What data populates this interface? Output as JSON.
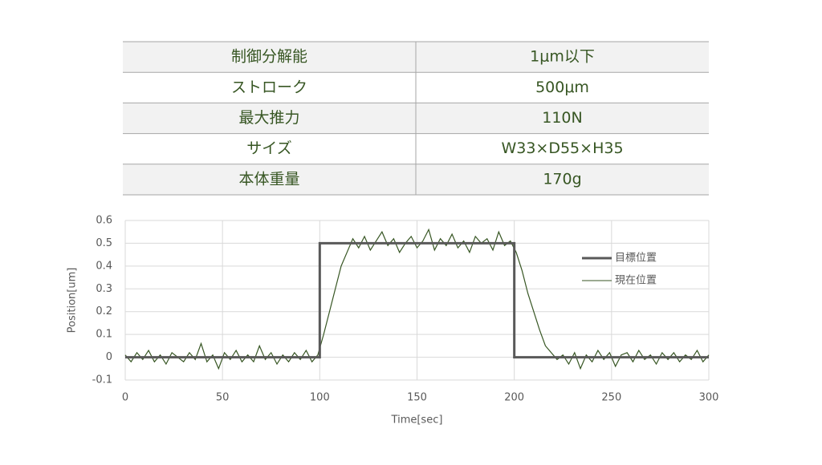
{
  "table": {
    "rows": [
      [
        "制御分解能",
        "1μm以下"
      ],
      [
        "ストローク",
        "500μm"
      ],
      [
        "最大推力",
        "110N"
      ],
      [
        "サイズ",
        "W33×D55×H35"
      ],
      [
        "本体重量",
        "170g"
      ]
    ]
  },
  "chart_data": {
    "type": "line",
    "x_label": "Time[sec]",
    "y_label": "Position[um]",
    "xlim": [
      0,
      300
    ],
    "xticks": [
      0,
      50,
      100,
      150,
      200,
      250,
      300
    ],
    "ylim": [
      -0.1,
      0.6
    ],
    "yticks": [
      0.6,
      0.5,
      0.4,
      0.3,
      0.2,
      0.1,
      0,
      -0.1
    ],
    "grid": true,
    "legend": "right",
    "series": [
      {
        "name": "目標位置",
        "color": "#595959",
        "x": [
          0,
          100,
          100,
          200,
          200,
          300
        ],
        "values": [
          0,
          0,
          0.5,
          0.5,
          0,
          0
        ]
      },
      {
        "name": "現在位置",
        "color": "#375623",
        "x": [
          0,
          3,
          6,
          9,
          12,
          15,
          18,
          21,
          24,
          27,
          30,
          33,
          36,
          39,
          42,
          45,
          48,
          51,
          54,
          57,
          60,
          63,
          66,
          69,
          72,
          75,
          78,
          81,
          84,
          87,
          90,
          93,
          96,
          99,
          102,
          105,
          108,
          111,
          114,
          117,
          120,
          123,
          126,
          129,
          132,
          135,
          138,
          141,
          144,
          147,
          150,
          153,
          156,
          159,
          162,
          165,
          168,
          171,
          174,
          177,
          180,
          183,
          186,
          189,
          192,
          195,
          198,
          201,
          204,
          207,
          210,
          213,
          216,
          219,
          222,
          225,
          228,
          231,
          234,
          237,
          240,
          243,
          246,
          249,
          252,
          255,
          258,
          261,
          264,
          267,
          270,
          273,
          276,
          279,
          282,
          285,
          288,
          291,
          294,
          297,
          300
        ],
        "values": [
          0.01,
          -0.02,
          0.02,
          -0.01,
          0.03,
          -0.02,
          0.01,
          -0.03,
          0.02,
          0,
          -0.02,
          0.02,
          -0.01,
          0.06,
          -0.02,
          0.01,
          -0.05,
          0.02,
          -0.01,
          0.03,
          -0.02,
          0.01,
          -0.02,
          0.05,
          -0.01,
          0.02,
          -0.03,
          0.01,
          -0.02,
          0.02,
          -0.01,
          0.03,
          -0.02,
          0.01,
          0.1,
          0.2,
          0.3,
          0.4,
          0.46,
          0.52,
          0.48,
          0.53,
          0.47,
          0.51,
          0.55,
          0.49,
          0.52,
          0.46,
          0.5,
          0.53,
          0.48,
          0.51,
          0.56,
          0.47,
          0.52,
          0.49,
          0.54,
          0.48,
          0.51,
          0.46,
          0.53,
          0.5,
          0.52,
          0.47,
          0.55,
          0.49,
          0.51,
          0.46,
          0.38,
          0.28,
          0.2,
          0.12,
          0.05,
          0.02,
          -0.01,
          0.01,
          -0.03,
          0.02,
          -0.05,
          0.01,
          -0.02,
          0.03,
          -0.01,
          0.02,
          -0.04,
          0.01,
          0.02,
          -0.02,
          0.03,
          -0.01,
          0.01,
          -0.03,
          0.02,
          -0.01,
          0.02,
          -0.02,
          0.01,
          -0.01,
          0.03,
          -0.02,
          0.01
        ]
      }
    ]
  }
}
